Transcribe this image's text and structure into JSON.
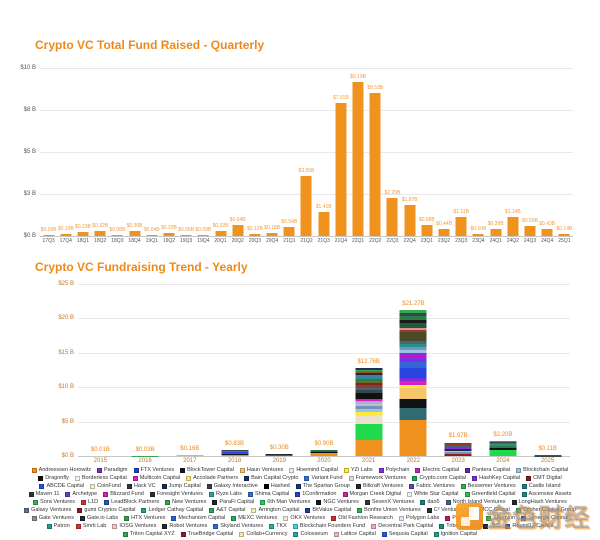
{
  "watermark": {
    "text": "金色财经"
  },
  "chart_data": [
    {
      "type": "bar",
      "title": "Crypto VC Total Fund Raised - Quarterly",
      "title_color": "#ee8a1c",
      "bar_color": "#f0921e",
      "grid": true,
      "legend_position": "none",
      "ylim": [
        0,
        10
      ],
      "y_tick_labels": [
        "$10 B",
        "$8 B",
        "$5 B",
        "$3 B",
        "$0 B"
      ],
      "categories": [
        "17Q3",
        "17Q4",
        "18Q1",
        "18Q2",
        "18Q3",
        "18Q4",
        "19Q1",
        "19Q2",
        "19Q3",
        "19Q4",
        "20Q1",
        "20Q2",
        "20Q3",
        "20Q4",
        "21Q1",
        "21Q2",
        "21Q3",
        "21Q4",
        "22Q1",
        "22Q2",
        "22Q3",
        "22Q4",
        "23Q1",
        "23Q2",
        "23Q3",
        "23Q4",
        "24Q1",
        "24Q2",
        "24Q3",
        "24Q4",
        "25Q1"
      ],
      "values": [
        0.09,
        0.1,
        0.23,
        0.32,
        0.08,
        0.3,
        0.04,
        0.2,
        0.05,
        0.09,
        0.32,
        0.64,
        0.12,
        0.18,
        0.54,
        3.55,
        1.41,
        7.91,
        9.19,
        8.53,
        2.25,
        1.87,
        0.68,
        0.44,
        1.11,
        0.1,
        0.39,
        1.14,
        0.59,
        0.43,
        0.14
      ],
      "bar_labels": [
        "$0.09B",
        "$0.10B",
        "$0.23B",
        "$0.32B",
        "$0.08B",
        "$0.30B",
        "$0.04B",
        "$0.20B",
        "$0.05B",
        "$0.09B",
        "$0.32B",
        "$0.64B",
        "$0.12B",
        "$0.18B",
        "$0.54B",
        "$3.55B",
        "$1.41B",
        "$7.91B",
        "$9.19B",
        "$8.53B",
        "$2.25B",
        "$1.87B",
        "$0.68B",
        "$0.44B",
        "$1.11B",
        "$0.10B",
        "$0.39B",
        "$1.14B",
        "$0.59B",
        "$0.43B",
        "$0.14B"
      ]
    },
    {
      "type": "bar",
      "stacked": true,
      "title": "Crypto VC Fundraising Trend - Yearly",
      "title_color": "#ee8a1c",
      "grid": true,
      "legend_position": "bottom",
      "ylim": [
        0,
        25
      ],
      "y_tick_labels": [
        "$25 B",
        "$20 B",
        "$15 B",
        "$10 B",
        "$5 B",
        "$0 B"
      ],
      "categories": [
        "2015",
        "2016",
        "2017",
        "2018",
        "2019",
        "2020",
        "2021",
        "2022",
        "2023",
        "2024",
        "2025"
      ],
      "totals": [
        0.01,
        0.03,
        0.16,
        0.83,
        0.3,
        0.9,
        12.76,
        21.27,
        1.97,
        2.2,
        0.11
      ],
      "bar_labels": [
        "$0.01B",
        "$0.03B",
        "$0.16B",
        "$0.83B",
        "$0.30B",
        "$0.90B",
        "$12.76B",
        "$21.27B",
        "$1.97B",
        "$2.20B",
        "$0.11B"
      ],
      "stacks": [
        [
          {
            "c": "#4a90d9",
            "v": 0.01
          }
        ],
        [
          {
            "c": "#35a952",
            "v": 0.03
          }
        ],
        [
          {
            "c": "#8cd98c",
            "v": 0.16
          }
        ],
        [
          {
            "c": "#f0921e",
            "v": 0.18
          },
          {
            "c": "#111111",
            "v": 0.08
          },
          {
            "c": "#8a2be2",
            "v": 0.22
          },
          {
            "c": "#2743e0",
            "v": 0.14
          },
          {
            "c": "#e01ec8",
            "v": 0.07
          },
          {
            "c": "#b9c2cc",
            "v": 0.06
          },
          {
            "c": "#37474f",
            "v": 0.08
          }
        ],
        [
          {
            "c": "#7b2fbe",
            "v": 0.1
          },
          {
            "c": "#e01ec8",
            "v": 0.07
          },
          {
            "c": "#262b33",
            "v": 0.07
          },
          {
            "c": "#49637f",
            "v": 0.06
          }
        ],
        [
          {
            "c": "#f0921e",
            "v": 0.4
          },
          {
            "c": "#111111",
            "v": 0.14
          },
          {
            "c": "#2743e0",
            "v": 0.12
          },
          {
            "c": "#8a2be2",
            "v": 0.09
          },
          {
            "c": "#2e7d46",
            "v": 0.08
          },
          {
            "c": "#b9c2cc",
            "v": 0.07
          }
        ],
        [
          {
            "c": "#f0921e",
            "v": 2.3
          },
          {
            "c": "#21d94c",
            "v": 2.4
          },
          {
            "c": "#ece0cc",
            "v": 1.05
          },
          {
            "c": "#ffe93a",
            "v": 0.7
          },
          {
            "c": "#9cc3e4",
            "v": 0.45
          },
          {
            "c": "#6f95b8",
            "v": 0.35
          },
          {
            "c": "#b9c2cc",
            "v": 0.3
          },
          {
            "c": "#aab0d8",
            "v": 0.28
          },
          {
            "c": "#e88aab",
            "v": 0.22
          },
          {
            "c": "#dd1fbe",
            "v": 0.18
          },
          {
            "c": "#111111",
            "v": 0.95
          },
          {
            "c": "#37474f",
            "v": 0.45
          },
          {
            "c": "#49637f",
            "v": 0.32
          },
          {
            "c": "#7a4a2a",
            "v": 0.4
          },
          {
            "c": "#8b1e1e",
            "v": 0.3
          },
          {
            "c": "#6e6a2c",
            "v": 0.28
          },
          {
            "c": "#2e7d46",
            "v": 0.3
          },
          {
            "c": "#2a8f85",
            "v": 0.26
          },
          {
            "c": "#4a7aaa",
            "v": 0.28
          },
          {
            "c": "#262b33",
            "v": 0.26
          },
          {
            "c": "#a0522d",
            "v": 0.3
          },
          {
            "c": "#35a952",
            "v": 0.22
          },
          {
            "c": "#1d2f55",
            "v": 0.21
          }
        ],
        [
          {
            "c": "#f0921e",
            "v": 5.2
          },
          {
            "c": "#2e6b72",
            "v": 1.85
          },
          {
            "c": "#111111",
            "v": 1.3
          },
          {
            "c": "#f6c66a",
            "v": 1.49
          },
          {
            "c": "#ffe93a",
            "v": 0.55
          },
          {
            "c": "#dd1fbe",
            "v": 0.45
          },
          {
            "c": "#7c2fe0",
            "v": 0.5
          },
          {
            "c": "#2743e0",
            "v": 1.45
          },
          {
            "c": "#3566d6",
            "v": 0.85
          },
          {
            "c": "#7a2fe8",
            "v": 0.55
          },
          {
            "c": "#d013b8",
            "v": 0.45
          },
          {
            "c": "#8a2be2",
            "v": 0.4
          },
          {
            "c": "#9cc3e4",
            "v": 0.4
          },
          {
            "c": "#6f95b8",
            "v": 0.45
          },
          {
            "c": "#2a8f85",
            "v": 0.4
          },
          {
            "c": "#49637f",
            "v": 0.4
          },
          {
            "c": "#4c4a27",
            "v": 1.3
          },
          {
            "c": "#92402a",
            "v": 0.35
          },
          {
            "c": "#e88aab",
            "v": 0.28
          },
          {
            "c": "#1e5c36",
            "v": 0.7
          },
          {
            "c": "#1a1a1a",
            "v": 0.45
          },
          {
            "c": "#2e7d46",
            "v": 0.55
          },
          {
            "c": "#37474f",
            "v": 0.45
          },
          {
            "c": "#35a952",
            "v": 0.5
          }
        ],
        [
          {
            "c": "#8b1e1e",
            "v": 0.3
          },
          {
            "c": "#6f95b8",
            "v": 0.28
          },
          {
            "c": "#9cc3e4",
            "v": 0.22
          },
          {
            "c": "#262b33",
            "v": 0.25
          },
          {
            "c": "#7c2fe0",
            "v": 0.22
          },
          {
            "c": "#49637f",
            "v": 0.22
          },
          {
            "c": "#92402a",
            "v": 0.2
          },
          {
            "c": "#2743e0",
            "v": 0.18
          },
          {
            "c": "#35a952",
            "v": 0.1
          }
        ],
        [
          {
            "c": "#21d94c",
            "v": 0.9
          },
          {
            "c": "#111111",
            "v": 0.28
          },
          {
            "c": "#2e7d46",
            "v": 0.3
          },
          {
            "c": "#2a8f85",
            "v": 0.22
          },
          {
            "c": "#3566d6",
            "v": 0.2
          },
          {
            "c": "#37474f",
            "v": 0.18
          },
          {
            "c": "#35a952",
            "v": 0.12
          }
        ],
        [
          {
            "c": "#37474f",
            "v": 0.06
          },
          {
            "c": "#2743e0",
            "v": 0.05
          }
        ]
      ],
      "legend": [
        {
          "label": "Andreessen Horowitz",
          "color": "#f0921e"
        },
        {
          "label": "Paradigm",
          "color": "#7b2fbe"
        },
        {
          "label": "FTX Ventures",
          "color": "#2244cc"
        },
        {
          "label": "BlockTower Capital",
          "color": "#16181c"
        },
        {
          "label": "Haun Ventures",
          "color": "#f6c66a"
        },
        {
          "label": "Hivemind Capital",
          "color": "#e9e9e9"
        },
        {
          "label": "YZi Labs",
          "color": "#ffe93a"
        },
        {
          "label": "Polychain",
          "color": "#8a2be2"
        },
        {
          "label": "Electric Capital",
          "color": "#c026b0"
        },
        {
          "label": "Pantera Capital",
          "color": "#5c2d91"
        },
        {
          "label": "Blockchain Capital",
          "color": "#9cc3e4"
        },
        {
          "label": "Dragonfly",
          "color": "#101014"
        },
        {
          "label": "Borderless Capital",
          "color": "#f4f4f4"
        },
        {
          "label": "Multicoin Capital",
          "color": "#e01ec8"
        },
        {
          "label": "Accolade Partners",
          "color": "#ffe87a"
        },
        {
          "label": "Bain Capital Crypto",
          "color": "#16355c"
        },
        {
          "label": "Variant Fund",
          "color": "#2e6fde"
        },
        {
          "label": "Framework Ventures",
          "color": "#d9dde2"
        },
        {
          "label": "Crypto.com Capital",
          "color": "#18a85a"
        },
        {
          "label": "HashKey Capital",
          "color": "#7a30cf"
        },
        {
          "label": "CMT Digital",
          "color": "#7a1d1d"
        },
        {
          "label": "ABCDE Capital",
          "color": "#2255dd"
        },
        {
          "label": "CoinFund",
          "color": "#f6ecd0"
        },
        {
          "label": "Hack VC",
          "color": "#2e3440"
        },
        {
          "label": "Jump Capital",
          "color": "#1b2a55"
        },
        {
          "label": "Galaxy Interactive",
          "color": "#3a3f5c"
        },
        {
          "label": "Hashed",
          "color": "#000000"
        },
        {
          "label": "The Spartan Group",
          "color": "#123a6b"
        },
        {
          "label": "Bitkraft Ventures",
          "color": "#22262e"
        },
        {
          "label": "Fabric Ventures",
          "color": "#6644aa"
        },
        {
          "label": "Bessemer Ventures",
          "color": "#2fae4e"
        },
        {
          "label": "Castle Island",
          "color": "#1f7f84"
        },
        {
          "label": "Maven 11",
          "color": "#30343a"
        },
        {
          "label": "Archetype",
          "color": "#6a3bd1"
        },
        {
          "label": "Blizzard Fund",
          "color": "#d41bb4"
        },
        {
          "label": "Foresight Ventures",
          "color": "#25303f"
        },
        {
          "label": "Ryze Labs",
          "color": "#2aa6a0"
        },
        {
          "label": "Shima Capital",
          "color": "#2f6fd0"
        },
        {
          "label": "1Confirmation",
          "color": "#2240e0"
        },
        {
          "label": "Morgan Creek Digital",
          "color": "#cc22aa"
        },
        {
          "label": "White Star Capital",
          "color": "#eef0f2"
        },
        {
          "label": "Greenfield Capital",
          "color": "#2fbb55"
        },
        {
          "label": "Ascensive Assets",
          "color": "#19897f"
        },
        {
          "label": "Sora Ventures",
          "color": "#3ab54a"
        },
        {
          "label": "L1D",
          "color": "#d03030"
        },
        {
          "label": "LeadBlock Partners",
          "color": "#2a52be"
        },
        {
          "label": "New Ventures",
          "color": "#37a34a"
        },
        {
          "label": "ParaFi Capital",
          "color": "#20262c"
        },
        {
          "label": "6th Man Ventures",
          "color": "#22c55e"
        },
        {
          "label": "NGC Ventures",
          "color": "#15181c"
        },
        {
          "label": "SevenX Ventures",
          "color": "#2e3440"
        },
        {
          "label": "dao5",
          "color": "#157f7a"
        },
        {
          "label": "North Island Ventures",
          "color": "#44618c"
        },
        {
          "label": "LongHash Ventures",
          "color": "#23282f"
        },
        {
          "label": "Galaxy Ventures",
          "color": "#5b718c"
        },
        {
          "label": "gumi Cryptos Capital",
          "color": "#8b1a1a"
        },
        {
          "label": "Ledger Cathay Capital",
          "color": "#1fa394"
        },
        {
          "label": "A&T Capital",
          "color": "#29a84b"
        },
        {
          "label": "Arrington Capital",
          "color": "#f6edb4"
        },
        {
          "label": "BitValue Capital",
          "color": "#1c3f8f"
        },
        {
          "label": "Bonfire Union Ventures",
          "color": "#2fae52"
        },
        {
          "label": "C² Ventures",
          "color": "#2a2e36"
        },
        {
          "label": "CMCC Global",
          "color": "#7d2020"
        },
        {
          "label": "Cypher Capital Group",
          "color": "#35a952"
        },
        {
          "label": "Gate Ventures",
          "color": "#8a9099"
        },
        {
          "label": "Gate.io Labs",
          "color": "#222831"
        },
        {
          "label": "HTX Ventures",
          "color": "#2f9e44"
        },
        {
          "label": "Mechanism Capital",
          "color": "#2b5fd9"
        },
        {
          "label": "MEXC Ventures",
          "color": "#1fae5a"
        },
        {
          "label": "OKX Ventures",
          "color": "#f3ead2"
        },
        {
          "label": "Old Fashion Research",
          "color": "#d42b2b"
        },
        {
          "label": "Polygon Labs",
          "color": "#e6e0f8"
        },
        {
          "label": "Protagonist",
          "color": "#c2185b"
        },
        {
          "label": "Sfermion",
          "color": "#35b24a"
        },
        {
          "label": "Synergis Capital",
          "color": "#2c63c8"
        },
        {
          "label": "Patron",
          "color": "#1d9e8f"
        },
        {
          "label": "Smrti Lab",
          "color": "#cf3333"
        },
        {
          "label": "IOSG Ventures",
          "color": "#f2c4c4"
        },
        {
          "label": "Robot Ventures",
          "color": "#23272e"
        },
        {
          "label": "Skyland Ventures",
          "color": "#2d6bd8"
        },
        {
          "label": "TKX",
          "color": "#27b3a8"
        },
        {
          "label": "Blockchain Founders Fund",
          "color": "#39d3e6"
        },
        {
          "label": "Decentral Park Capital",
          "color": "#f3a6c4"
        },
        {
          "label": "Tribe Capital",
          "color": "#1b8a7f"
        },
        {
          "label": "IVC",
          "color": "#262b33"
        },
        {
          "label": "Round13 Capital",
          "color": "#2a55c9"
        },
        {
          "label": "Triton Capital XYZ",
          "color": "#2fa94f"
        },
        {
          "label": "TrueBridge Capital",
          "color": "#8a1f2d"
        },
        {
          "label": "Collab+Currency",
          "color": "#f5e9a6"
        },
        {
          "label": "Colosseum",
          "color": "#27a79a"
        },
        {
          "label": "Lattice Capital",
          "color": "#e9b8c8"
        },
        {
          "label": "Sequoia Capital",
          "color": "#2b57d5"
        },
        {
          "label": "Ignition Capital",
          "color": "#1fa08e"
        }
      ]
    }
  ]
}
